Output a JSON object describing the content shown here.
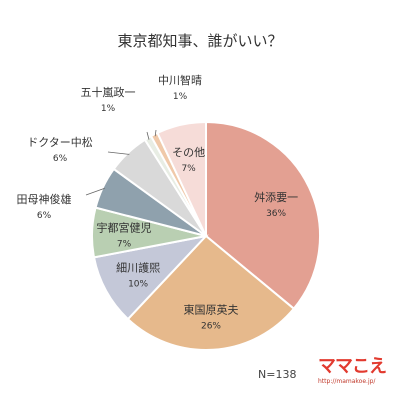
{
  "chart_data": {
    "type": "pie",
    "title": "東京都知事、誰がいい？",
    "slices": [
      {
        "name": "舛添要一",
        "label": "36%",
        "value": 36,
        "color": "#e3a092"
      },
      {
        "name": "東国原英夫",
        "label": "26%",
        "value": 26,
        "color": "#e6b98c"
      },
      {
        "name": "細川護煕",
        "label": "10%",
        "value": 10,
        "color": "#c4c8d8"
      },
      {
        "name": "宇都宮健児",
        "label": "7%",
        "value": 7,
        "color": "#b9cfb2"
      },
      {
        "name": "田母神俊雄",
        "label": "6%",
        "value": 6,
        "color": "#8fa1ad"
      },
      {
        "name": "ドクター中松",
        "label": "6%",
        "value": 6,
        "color": "#d9d9d9"
      },
      {
        "name": "五十嵐政一",
        "label": "1%",
        "value": 1,
        "color": "#e8ede4"
      },
      {
        "name": "中川智晴",
        "label": "1%",
        "value": 1,
        "color": "#f0c9a9"
      },
      {
        "name": "その他",
        "label": "7%",
        "value": 7,
        "color": "#f6dcd8"
      }
    ]
  },
  "footer": {
    "sample_size": "N=138",
    "logo_text": "ママこえ",
    "logo_url": "http://mamakoe.jp/"
  }
}
